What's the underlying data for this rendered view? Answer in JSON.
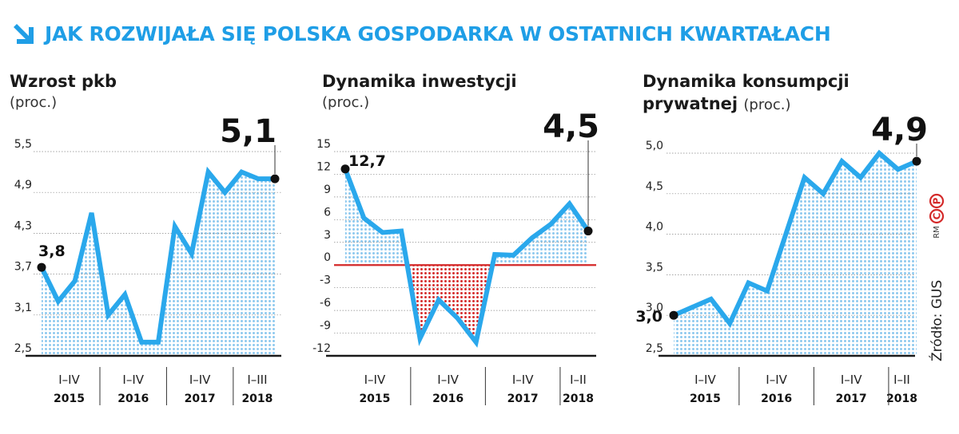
{
  "title": "JAK ROZWIJAŁA SIĘ POLSKA GOSPODARKA W OSTATNICH KWARTAŁACH",
  "source": "Źródło: GUS",
  "copyright": "RM",
  "colors": {
    "accent": "#1f9ee6",
    "line": "#2aa8ec",
    "dots_positive": "#8cc8ee",
    "dots_negative": "#d42a2a",
    "zero_line": "#d42a2a",
    "axis": "#1a1a1a"
  },
  "chart_data": [
    {
      "type": "area",
      "title": "Wzrost pkb",
      "unit": "(proc.)",
      "ylim": [
        2.5,
        5.5
      ],
      "yticks": [
        "5,5",
        "4,9",
        "4,3",
        "3,7",
        "3,1",
        "2,5"
      ],
      "ytick_values": [
        5.5,
        4.9,
        4.3,
        3.7,
        3.1,
        2.5
      ],
      "period_labels": [
        {
          "quarters": "I–IV",
          "year": "2015"
        },
        {
          "quarters": "I–IV",
          "year": "2016"
        },
        {
          "quarters": "I–IV",
          "year": "2017"
        },
        {
          "quarters": "I–III",
          "year": "2018"
        }
      ],
      "period_lengths": [
        4,
        4,
        4,
        3
      ],
      "values": [
        3.8,
        3.3,
        3.6,
        4.6,
        3.1,
        3.4,
        2.7,
        2.7,
        4.4,
        4.0,
        5.2,
        4.9,
        5.2,
        5.1,
        5.1
      ],
      "start_label": "3,8",
      "end_label": "5,1"
    },
    {
      "type": "area",
      "title": "Dynamika inwestycji",
      "unit": "(proc.)",
      "ylim": [
        -12,
        15
      ],
      "yticks": [
        "15",
        "12",
        "9",
        "6",
        "3",
        "0",
        "-3",
        "-6",
        "-9",
        "-12"
      ],
      "ytick_values": [
        15,
        12,
        9,
        6,
        3,
        0,
        -3,
        -6,
        -9,
        -12
      ],
      "period_labels": [
        {
          "quarters": "I–IV",
          "year": "2015"
        },
        {
          "quarters": "I–IV",
          "year": "2016"
        },
        {
          "quarters": "I–IV",
          "year": "2017"
        },
        {
          "quarters": "I–II",
          "year": "2018"
        }
      ],
      "period_lengths": [
        4,
        4,
        4,
        2
      ],
      "values": [
        12.7,
        6.2,
        4.3,
        4.5,
        -9.7,
        -4.6,
        -7.0,
        -10.2,
        1.4,
        1.3,
        3.6,
        5.4,
        8.1,
        4.5
      ],
      "start_label": "12,7",
      "end_label": "4,5"
    },
    {
      "type": "area",
      "title": "Dynamika konsumpcji prywatnej",
      "title_line1": "Dynamika konsumpcji",
      "title_line2": "prywatnej",
      "unit": "(proc.)",
      "ylim": [
        2.5,
        5.0
      ],
      "yticks": [
        "5,0",
        "4,5",
        "4,0",
        "3,5",
        "3,0",
        "2,5"
      ],
      "ytick_values": [
        5.0,
        4.5,
        4.0,
        3.5,
        3.0,
        2.5
      ],
      "period_labels": [
        {
          "quarters": "I–IV",
          "year": "2015"
        },
        {
          "quarters": "I–IV",
          "year": "2016"
        },
        {
          "quarters": "I–IV",
          "year": "2017"
        },
        {
          "quarters": "I–II",
          "year": "2018"
        }
      ],
      "period_lengths": [
        4,
        4,
        4,
        2
      ],
      "values": [
        3.0,
        3.1,
        3.2,
        2.9,
        3.4,
        3.3,
        4.0,
        4.7,
        4.5,
        4.9,
        4.7,
        5.0,
        4.8,
        4.9
      ],
      "start_label": "3,0",
      "end_label": "4,9"
    }
  ]
}
